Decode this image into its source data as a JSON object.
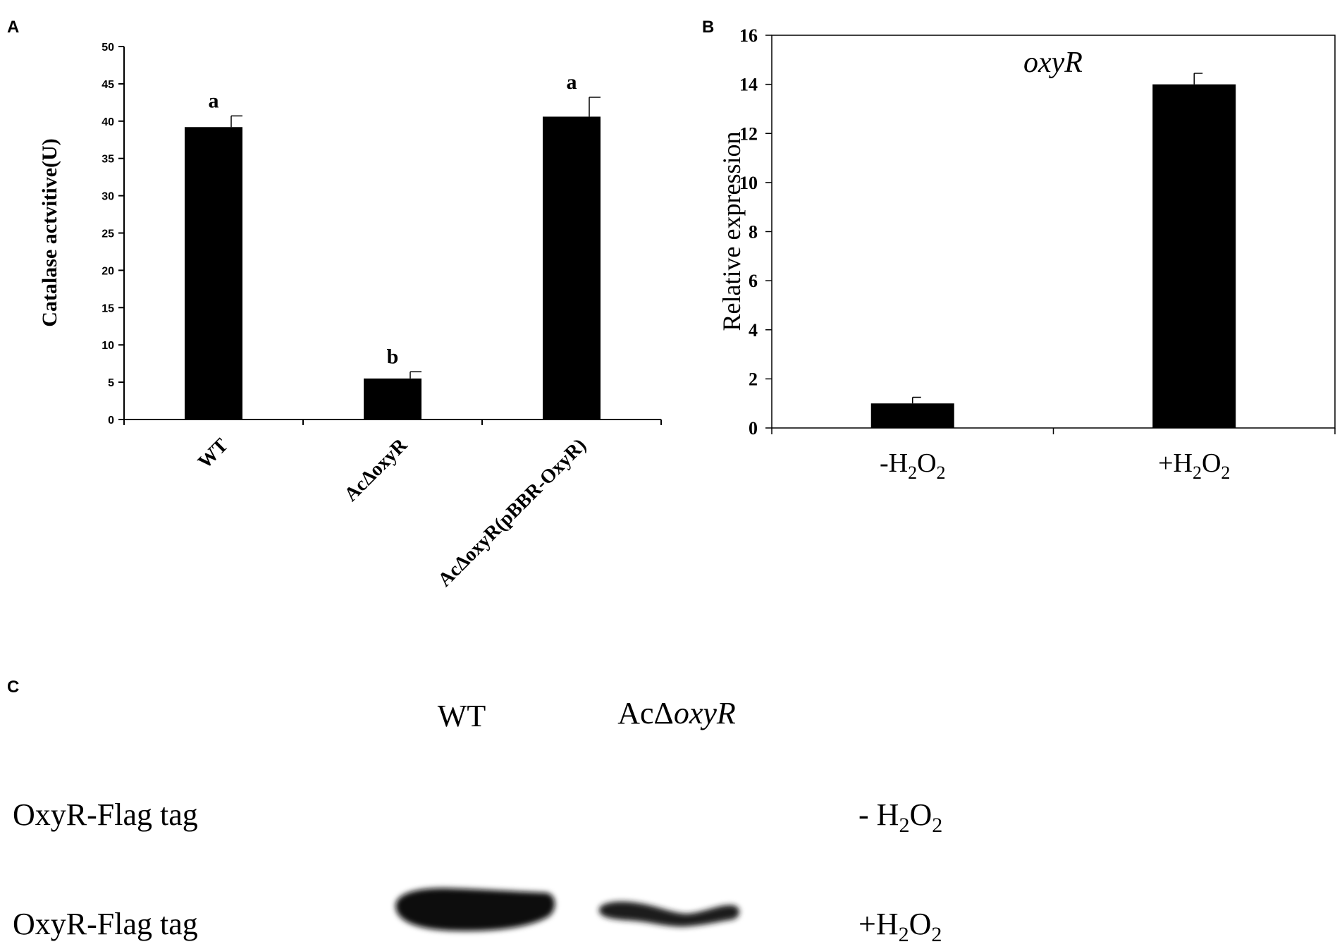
{
  "chart_data": [
    {
      "panel": "A",
      "type": "bar",
      "ylabel": "Catalase actvitive(U)",
      "ylim": [
        0,
        50
      ],
      "yticks": [
        0,
        5,
        10,
        15,
        20,
        25,
        30,
        35,
        40,
        45,
        50
      ],
      "categories": [
        "WT",
        "AcΔoxyR",
        "AcΔoxyR(pBBR-OxyR)"
      ],
      "values": [
        39.2,
        5.5,
        40.6
      ],
      "errors": [
        1.5,
        0.9,
        2.6
      ],
      "annotations": [
        "a",
        "b",
        "a"
      ],
      "grid": false,
      "bar_color": "#000000"
    },
    {
      "panel": "B",
      "type": "bar",
      "title": "oxyR",
      "ylabel": "Relative expression",
      "ylim": [
        0,
        16
      ],
      "yticks": [
        0,
        2,
        4,
        6,
        8,
        10,
        12,
        14,
        16
      ],
      "categories": [
        {
          "prefix": "-H",
          "sub1": "2",
          "mid": "O",
          "sub2": "2"
        },
        {
          "prefix": "+H",
          "sub1": "2",
          "mid": "O",
          "sub2": "2"
        }
      ],
      "values": [
        1.0,
        14.0
      ],
      "errors": [
        0.25,
        0.45
      ],
      "grid": false,
      "bar_color": "#000000"
    }
  ],
  "blot": {
    "panel": "C",
    "lanes": [
      {
        "prefix": "WT",
        "italic": ""
      },
      {
        "prefix": "AcΔ",
        "italic": "oxyR"
      }
    ],
    "rows": [
      {
        "label": "OxyR-Flag tag",
        "condition": {
          "prefix": "- H",
          "sub1": "2",
          "mid": "O",
          "sub2": "2"
        },
        "band_intensity": [
          0,
          0
        ]
      },
      {
        "label": "OxyR-Flag tag",
        "condition": {
          "prefix": "+H",
          "sub1": "2",
          "mid": "O",
          "sub2": "2"
        },
        "band_intensity": [
          1.0,
          0.55
        ]
      }
    ]
  },
  "panel_letters": [
    "A",
    "B",
    "C"
  ]
}
